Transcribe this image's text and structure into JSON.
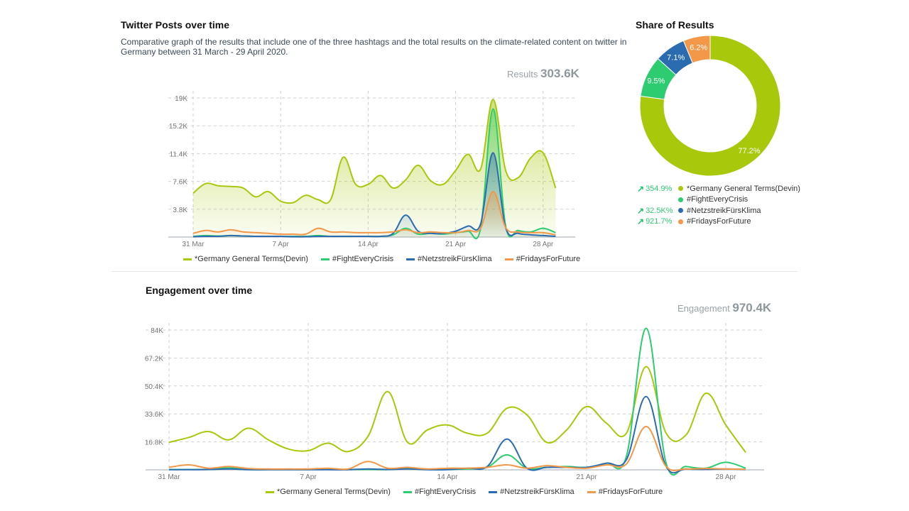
{
  "colors": {
    "germany": "#a8c80c",
    "fight": "#2ecc71",
    "netz": "#2b6cb0",
    "fridays": "#f39748",
    "grid": "#d0d0d0",
    "axis_text": "#777777"
  },
  "posts": {
    "title": "Twitter Posts over time",
    "description": "Comparative graph of the results that include one of the three hashtags and the total results on the climate-related content on twitter in Germany between 31 March - 29 April 2020.",
    "kpi_label": "Results",
    "kpi_value": "303.6K"
  },
  "share": {
    "title": "Share of Results",
    "rows": [
      {
        "delta": "354.9%",
        "has_delta": true,
        "label": "*Germany General Terms(Devin)",
        "color": "#a8c80c"
      },
      {
        "delta": "",
        "has_delta": false,
        "label": "#FightEveryCrisis",
        "color": "#2ecc71"
      },
      {
        "delta": "32.5K%",
        "has_delta": true,
        "label": "#NetzstreikFürsKlima",
        "color": "#2b6cb0"
      },
      {
        "delta": "921.7%",
        "has_delta": true,
        "label": "#FridaysForFuture",
        "color": "#f39748"
      }
    ]
  },
  "engagement": {
    "title": "Engagement over time",
    "kpi_label": "Engagement",
    "kpi_value": "970.4K"
  },
  "chart_data": [
    {
      "type": "area",
      "title": "Twitter Posts over time",
      "ylabel": "Results",
      "ylim": [
        0,
        19000
      ],
      "yticks": [
        "3.8K",
        "7.6K",
        "11.4K",
        "15.2K",
        "19K"
      ],
      "ytick_values": [
        3800,
        7600,
        11400,
        15200,
        19000
      ],
      "xticks": [
        "31 Mar",
        "7 Apr",
        "14 Apr",
        "21 Apr",
        "28 Apr"
      ],
      "xtick_index": [
        0,
        7,
        14,
        21,
        28
      ],
      "x": [
        "31 Mar",
        "1 Apr",
        "2 Apr",
        "3 Apr",
        "4 Apr",
        "5 Apr",
        "6 Apr",
        "7 Apr",
        "8 Apr",
        "9 Apr",
        "10 Apr",
        "11 Apr",
        "12 Apr",
        "13 Apr",
        "14 Apr",
        "15 Apr",
        "16 Apr",
        "17 Apr",
        "18 Apr",
        "19 Apr",
        "20 Apr",
        "21 Apr",
        "22 Apr",
        "23 Apr",
        "24 Apr",
        "25 Apr",
        "26 Apr",
        "27 Apr",
        "28 Apr",
        "29 Apr"
      ],
      "grid": true,
      "legend": "bottom",
      "series": [
        {
          "name": "*Germany General Terms(Devin)",
          "key": "germany",
          "values": [
            6000,
            7300,
            7000,
            6900,
            6700,
            5500,
            6200,
            4900,
            4700,
            5700,
            5100,
            5100,
            10900,
            7200,
            7200,
            8400,
            6700,
            7800,
            9800,
            7700,
            7200,
            9100,
            11300,
            9300,
            18800,
            9100,
            8100,
            10800,
            11500,
            6700
          ]
        },
        {
          "name": "#FightEveryCrisis",
          "key": "fight",
          "values": [
            100,
            200,
            150,
            200,
            150,
            100,
            100,
            100,
            100,
            100,
            200,
            100,
            100,
            100,
            100,
            100,
            300,
            1200,
            400,
            500,
            400,
            600,
            800,
            1200,
            17500,
            1500,
            900,
            700,
            1200,
            600
          ]
        },
        {
          "name": "#NetzstreikFürsKlima",
          "key": "netz",
          "values": [
            50,
            100,
            100,
            200,
            150,
            100,
            100,
            100,
            50,
            50,
            100,
            100,
            100,
            100,
            100,
            100,
            500,
            3000,
            800,
            500,
            500,
            800,
            1500,
            1800,
            11500,
            1300,
            500,
            300,
            200,
            100
          ]
        },
        {
          "name": "#FridaysForFuture",
          "key": "fridays",
          "values": [
            500,
            900,
            700,
            1000,
            700,
            600,
            500,
            400,
            400,
            400,
            1200,
            700,
            700,
            600,
            600,
            600,
            700,
            1000,
            600,
            700,
            600,
            600,
            900,
            1200,
            6200,
            1300,
            700,
            600,
            600,
            300
          ]
        }
      ]
    },
    {
      "type": "pie",
      "title": "Share of Results",
      "donut": true,
      "labels": [
        "*Germany General Terms(Devin)",
        "#FightEveryCrisis",
        "#NetzstreikFürsKlima",
        "#FridaysForFuture"
      ],
      "values": [
        77.2,
        9.5,
        7.1,
        6.2
      ],
      "value_labels": [
        "77.2%",
        "9.5%",
        "7.1%",
        "6.2%"
      ]
    },
    {
      "type": "line",
      "title": "Engagement over time",
      "ylabel": "Engagement",
      "ylim": [
        0,
        84000
      ],
      "yticks": [
        "16.8K",
        "33.6K",
        "50.4K",
        "67.2K",
        "84K"
      ],
      "ytick_values": [
        16800,
        33600,
        50400,
        67200,
        84000
      ],
      "xticks": [
        "31 Mar",
        "7 Apr",
        "14 Apr",
        "21 Apr",
        "28 Apr"
      ],
      "xtick_index": [
        0,
        7,
        14,
        21,
        28
      ],
      "x": [
        "31 Mar",
        "1 Apr",
        "2 Apr",
        "3 Apr",
        "4 Apr",
        "5 Apr",
        "6 Apr",
        "7 Apr",
        "8 Apr",
        "9 Apr",
        "10 Apr",
        "11 Apr",
        "12 Apr",
        "13 Apr",
        "14 Apr",
        "15 Apr",
        "16 Apr",
        "17 Apr",
        "18 Apr",
        "19 Apr",
        "20 Apr",
        "21 Apr",
        "22 Apr",
        "23 Apr",
        "24 Apr",
        "25 Apr",
        "26 Apr",
        "27 Apr",
        "28 Apr",
        "29 Apr"
      ],
      "grid": true,
      "legend": "bottom",
      "series": [
        {
          "name": "*Germany General Terms(Devin)",
          "key": "germany",
          "values": [
            16500,
            19500,
            23000,
            18000,
            25000,
            18000,
            12500,
            11500,
            16000,
            11000,
            20000,
            47000,
            16500,
            24000,
            27000,
            22000,
            22000,
            37000,
            33000,
            16500,
            24000,
            38000,
            28000,
            22000,
            62000,
            22000,
            21000,
            46000,
            27000,
            10500
          ]
        },
        {
          "name": "#FightEveryCrisis",
          "key": "fight",
          "values": [
            200,
            200,
            300,
            1200,
            200,
            200,
            200,
            200,
            200,
            200,
            200,
            200,
            1000,
            200,
            200,
            500,
            1500,
            9000,
            1000,
            1500,
            2000,
            1500,
            4000,
            8000,
            85000,
            4000,
            2000,
            1000,
            4500,
            1000
          ]
        },
        {
          "name": "#NetzstreikFürsKlima",
          "key": "netz",
          "values": [
            100,
            100,
            200,
            500,
            100,
            100,
            100,
            100,
            100,
            100,
            500,
            200,
            500,
            100,
            100,
            1000,
            2000,
            18500,
            1000,
            1500,
            1500,
            1500,
            4000,
            6000,
            44000,
            2000,
            500,
            300,
            500,
            200
          ]
        },
        {
          "name": "#FridaysForFuture",
          "key": "fridays",
          "values": [
            1500,
            3000,
            1000,
            2000,
            800,
            500,
            500,
            500,
            1000,
            500,
            5000,
            1000,
            1500,
            500,
            1000,
            1000,
            1500,
            3000,
            1000,
            2500,
            1500,
            1000,
            3000,
            3500,
            26000,
            2000,
            500,
            800,
            500,
            300
          ]
        }
      ]
    }
  ]
}
